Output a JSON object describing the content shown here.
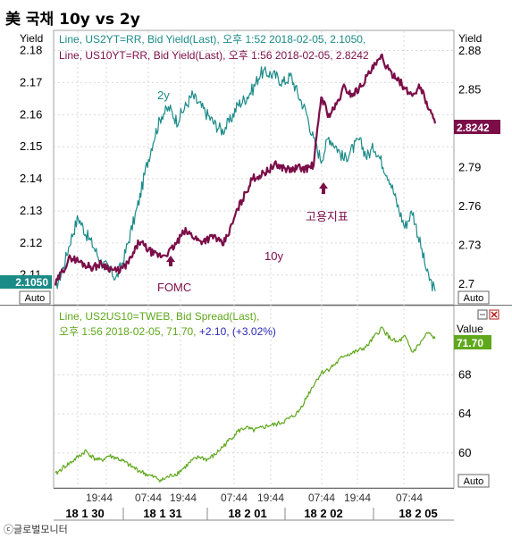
{
  "title": "美 국채 10y vs 2y",
  "copyright": "ⓒ글로벌모니터",
  "colors": {
    "us2y": "#1b8b88",
    "us10y": "#7b0e49",
    "spread": "#5fa81c",
    "label_blue": "#2a2ab8",
    "grid": "#d9d9d9"
  },
  "chart_data": [
    {
      "type": "line",
      "panel": "top",
      "left_axis": {
        "label": "Yield",
        "ticks": [
          2.11,
          2.12,
          2.13,
          2.14,
          2.15,
          2.16,
          2.17,
          2.18
        ],
        "range": [
          2.101,
          2.186
        ],
        "last_value_tag": "2.1050",
        "auto_label": "Auto"
      },
      "right_axis": {
        "label": "Yield",
        "ticks": [
          "2.88",
          "2.85",
          "2.82",
          "2.79",
          "2.76",
          "2.73",
          "2.7"
        ],
        "range": [
          2.685,
          2.895
        ],
        "last_value_tag": "2.8242",
        "auto_label": "Auto"
      },
      "legend": [
        "Line, US2YT=RR, Bid Yield(Last), 오후 1:52 2018-02-05, 2.1050,",
        "Line, US10YT=RR, Bid Yield(Last), 오후 1:56 2018-02-05, 2.8242"
      ],
      "series": [
        {
          "name": "2y",
          "axis": "left",
          "x": [
            0,
            2,
            4,
            6,
            8,
            10,
            12,
            14,
            16,
            18,
            20,
            22,
            24,
            26,
            28,
            30,
            32,
            34,
            36,
            38,
            40,
            42,
            44,
            46,
            48,
            50,
            52,
            54,
            56,
            58,
            60,
            62,
            64,
            66,
            68,
            70,
            72,
            74,
            76,
            78,
            80,
            82,
            84,
            86,
            88,
            90,
            92,
            94,
            96,
            98,
            100
          ],
          "values": [
            2.106,
            2.112,
            2.121,
            2.128,
            2.123,
            2.119,
            2.114,
            2.112,
            2.109,
            2.115,
            2.124,
            2.133,
            2.144,
            2.153,
            2.16,
            2.162,
            2.158,
            2.162,
            2.166,
            2.163,
            2.16,
            2.157,
            2.155,
            2.158,
            2.163,
            2.165,
            2.168,
            2.173,
            2.173,
            2.172,
            2.17,
            2.172,
            2.166,
            2.161,
            2.152,
            2.146,
            2.153,
            2.15,
            2.146,
            2.149,
            2.152,
            2.147,
            2.15,
            2.145,
            2.14,
            2.132,
            2.125,
            2.13,
            2.12,
            2.11,
            2.105
          ]
        },
        {
          "name": "10y",
          "axis": "right",
          "x": [
            0,
            2,
            4,
            6,
            8,
            10,
            12,
            14,
            16,
            18,
            20,
            22,
            24,
            26,
            28,
            30,
            32,
            34,
            36,
            38,
            40,
            42,
            44,
            46,
            48,
            50,
            52,
            54,
            56,
            58,
            60,
            62,
            64,
            66,
            68,
            70,
            72,
            74,
            76,
            78,
            80,
            82,
            84,
            86,
            88,
            90,
            92,
            94,
            96,
            98,
            100
          ],
          "values": [
            2.7,
            2.711,
            2.721,
            2.718,
            2.715,
            2.713,
            2.716,
            2.713,
            2.71,
            2.713,
            2.72,
            2.733,
            2.728,
            2.723,
            2.722,
            2.725,
            2.732,
            2.741,
            2.738,
            2.733,
            2.735,
            2.737,
            2.73,
            2.742,
            2.758,
            2.77,
            2.782,
            2.784,
            2.788,
            2.792,
            2.79,
            2.788,
            2.79,
            2.789,
            2.792,
            2.845,
            2.83,
            2.838,
            2.852,
            2.846,
            2.851,
            2.86,
            2.868,
            2.875,
            2.863,
            2.86,
            2.85,
            2.846,
            2.853,
            2.838,
            2.824
          ]
        }
      ],
      "annotations": [
        {
          "text": "2y",
          "color": "#1b8b88"
        },
        {
          "text": "10y",
          "color": "#7b0e49"
        },
        {
          "text": "FOMC",
          "color": "#7b0e49"
        },
        {
          "text": "고용지표",
          "color": "#7b0e49"
        }
      ]
    },
    {
      "type": "line",
      "panel": "bottom",
      "legend": [
        "Line, US2US10=TWEB, Bid Spread(Last),",
        "오후 1:56 2018-02-05, 71.70, +2.10, (+3.02%)"
      ],
      "right_axis": {
        "label": "Value",
        "ticks": [
          68,
          64,
          60
        ],
        "range": [
          56.5,
          75.0
        ],
        "last_value_tag": "71.70",
        "auto_label": "Auto"
      },
      "series": [
        {
          "name": "US2US10",
          "x": [
            0,
            2,
            4,
            6,
            8,
            10,
            12,
            14,
            16,
            18,
            20,
            22,
            24,
            26,
            28,
            30,
            32,
            34,
            36,
            38,
            40,
            42,
            44,
            46,
            48,
            50,
            52,
            54,
            56,
            58,
            60,
            62,
            64,
            66,
            68,
            70,
            72,
            74,
            76,
            78,
            80,
            82,
            84,
            86,
            88,
            90,
            92,
            94,
            96,
            98,
            100
          ],
          "values": [
            57.8,
            58.5,
            59.0,
            59.6,
            60.2,
            59.5,
            59.2,
            59.7,
            59.5,
            59.1,
            58.6,
            58.2,
            57.8,
            57.5,
            57.2,
            57.6,
            57.9,
            58.5,
            59.2,
            59.6,
            59.3,
            59.8,
            60.6,
            61.4,
            62.2,
            62.6,
            62.3,
            62.5,
            62.8,
            62.9,
            63.2,
            63.6,
            64.2,
            65.6,
            67.0,
            68.2,
            68.6,
            69.2,
            70.0,
            70.2,
            70.5,
            70.9,
            71.9,
            72.8,
            71.8,
            71.3,
            71.9,
            70.3,
            71.2,
            72.3,
            71.7
          ]
        }
      ]
    }
  ],
  "x_axis": {
    "time_ticks": [
      "19:44",
      "07:44",
      "19:44",
      "07:44",
      "19:44",
      "07:44",
      "19:44",
      "07:44"
    ],
    "date_labels": [
      "18 1 30",
      "18 1 31",
      "18 2 01",
      "18 2 02",
      "18 2 05"
    ]
  }
}
